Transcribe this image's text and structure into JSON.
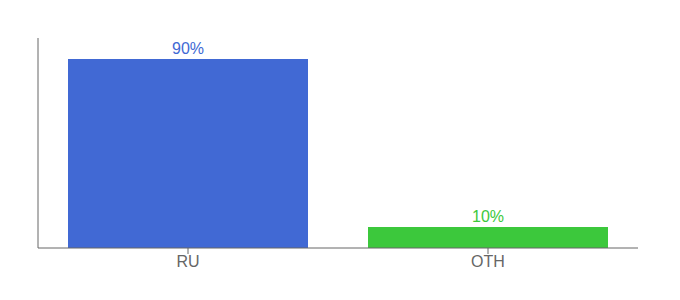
{
  "chart_data": {
    "type": "bar",
    "categories": [
      "RU",
      "OTH"
    ],
    "values": [
      90,
      10
    ],
    "value_labels": [
      "90%",
      "10%"
    ],
    "colors": [
      "#4169d4",
      "#3cc83c"
    ],
    "ylim": [
      0,
      100
    ],
    "tick_labels": "x",
    "data_labels": true
  }
}
